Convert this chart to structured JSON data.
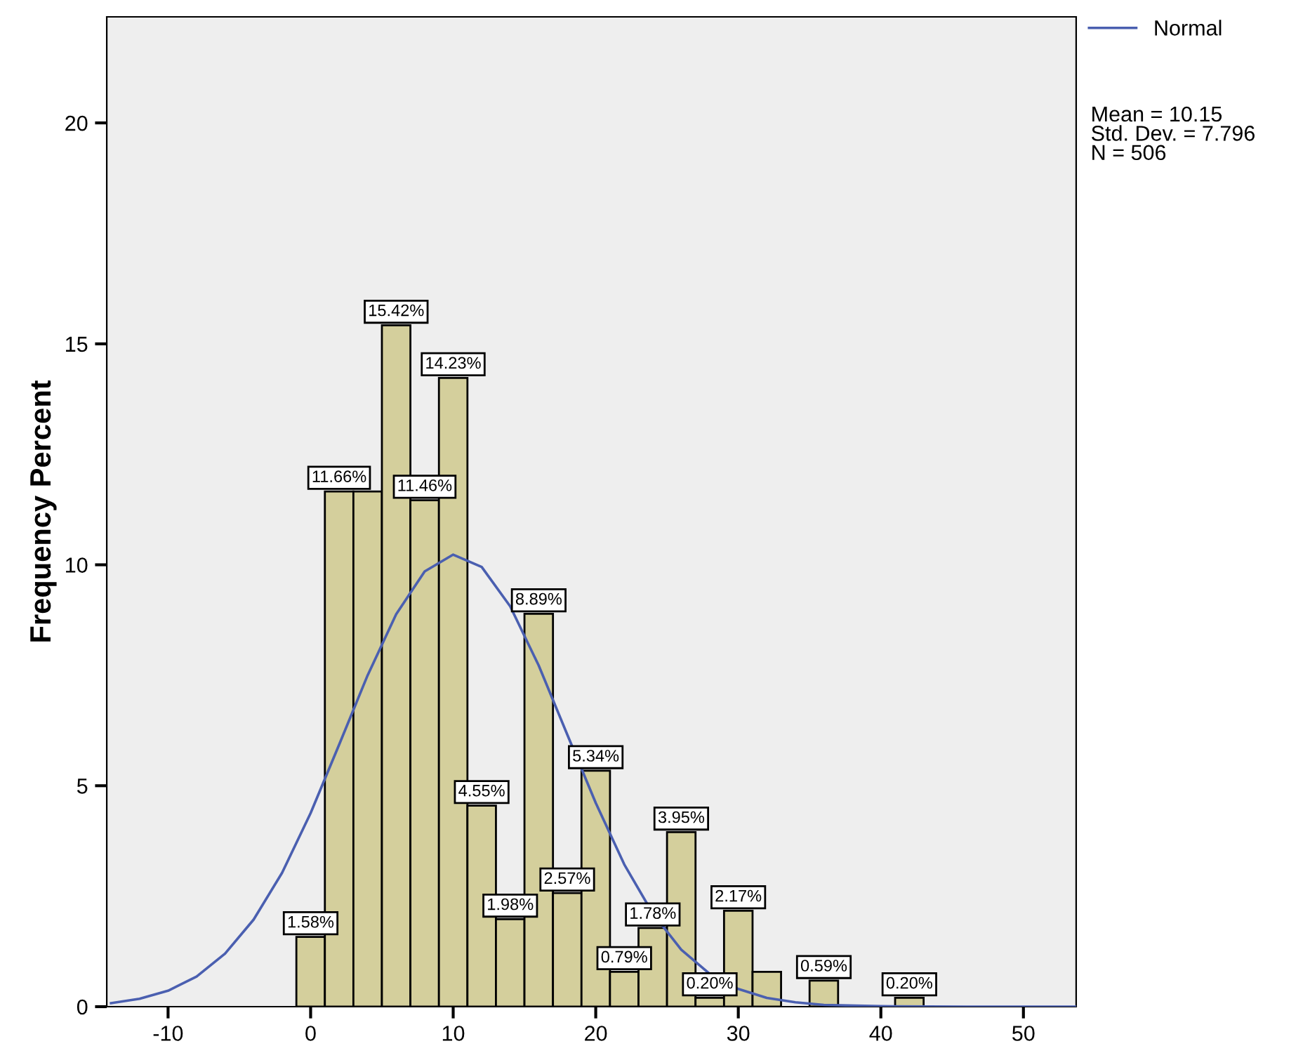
{
  "chart_data": {
    "type": "histogram",
    "ylabel": "Frequency Percent",
    "bins": [
      -1,
      1,
      3,
      5,
      7,
      9,
      11,
      13,
      15,
      17,
      19,
      21,
      23,
      25,
      27,
      29,
      31,
      33,
      35,
      37,
      39,
      41,
      43
    ],
    "series": [
      {
        "color": "#d4cf9c",
        "values": [
          1.58,
          11.66,
          11.66,
          15.42,
          11.46,
          14.23,
          4.55,
          1.98,
          8.89,
          2.57,
          5.34,
          0.79,
          1.78,
          3.95,
          0.2,
          2.17,
          0.79,
          0,
          0.59,
          0,
          0,
          0.2
        ],
        "value_labels": [
          "1.58%",
          "11.66%",
          null,
          "15.42%",
          "11.46%",
          "14.23%",
          "4.55%",
          "1.98%",
          "8.89%",
          "2.57%",
          "5.34%",
          "0.79%",
          "1.78%",
          "3.95%",
          "0.20%",
          "2.17%",
          null,
          null,
          "0.59%",
          null,
          null,
          "0.20%"
        ]
      },
      {
        "type": "line",
        "name": "Normal",
        "color": "#4a5fb0",
        "x": [
          -14,
          -12,
          -10,
          -8,
          -6,
          -4,
          -2,
          0,
          2,
          4,
          6,
          8,
          10,
          12,
          14,
          16,
          18,
          20,
          22,
          24,
          26,
          28,
          30,
          32,
          34,
          36,
          40,
          46,
          53.7
        ],
        "values": [
          0.08,
          0.18,
          0.36,
          0.68,
          1.2,
          1.97,
          3.03,
          4.38,
          5.93,
          7.5,
          8.88,
          9.85,
          10.23,
          9.95,
          9.06,
          7.72,
          6.16,
          4.61,
          3.22,
          2.11,
          1.29,
          0.74,
          0.4,
          0.2,
          0.1,
          0.04,
          0.01,
          0,
          0
        ]
      }
    ],
    "xlim": [
      -14.3,
      53.7
    ],
    "ylim": [
      0,
      22.4
    ],
    "xticks": [
      -10,
      0,
      10,
      20,
      30,
      40,
      50
    ],
    "yticks": [
      0,
      5,
      10,
      15,
      20
    ],
    "grid": false,
    "legend": "top right",
    "annotations": [
      "Mean = 10.15\nStd. Dev. = 7.796\nN = 506"
    ]
  }
}
